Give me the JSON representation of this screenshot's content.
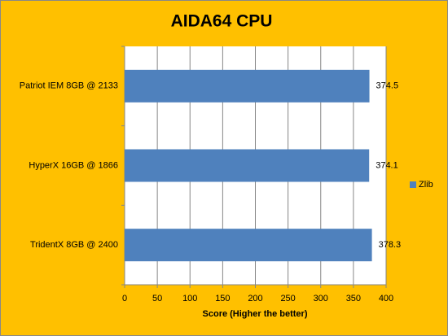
{
  "chart_data": {
    "type": "hbar",
    "title": "AIDA64 CPU",
    "x_label": "Score (Higher the better)",
    "categories": [
      "Patriot IEM 8GB @ 2133",
      "HyperX 16GB @ 1866",
      "TridentX 8GB @ 2400"
    ],
    "series": [
      {
        "name": "Zlib",
        "color": "#4F81BD",
        "values": [
          374.5,
          374.1,
          378.3
        ]
      }
    ],
    "xlim": [
      0,
      400
    ],
    "xticks": [
      0,
      50,
      100,
      150,
      200,
      250,
      300,
      350,
      400
    ],
    "grid": true,
    "legend": "right",
    "background": "#FFC000"
  }
}
